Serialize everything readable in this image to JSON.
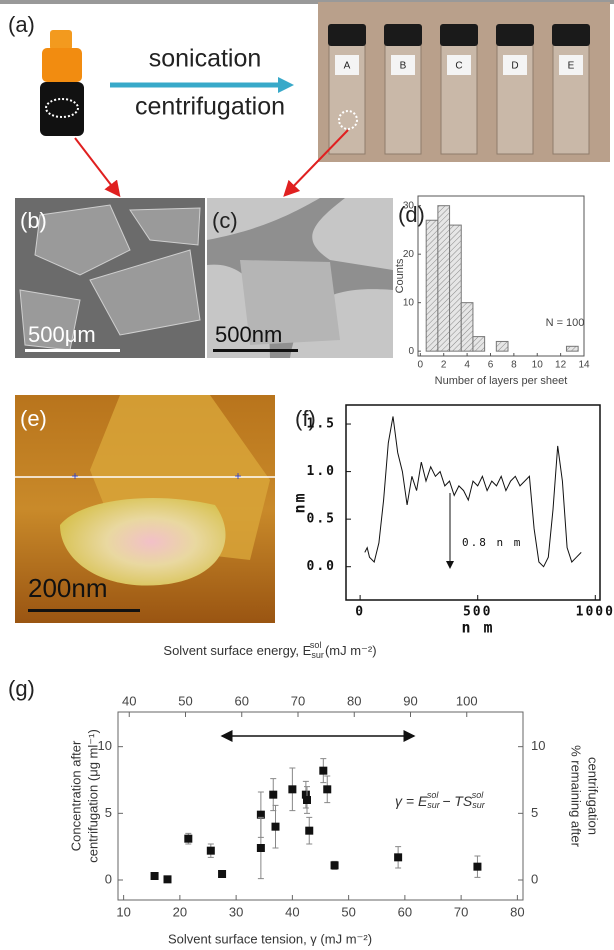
{
  "panels": {
    "a": {
      "label": "(a)",
      "arrow_top": "sonication",
      "arrow_bottom": "centrifugation",
      "vials": [
        "A",
        "B",
        "C",
        "D",
        "E"
      ]
    },
    "b": {
      "label": "(b)",
      "scale": "500μm"
    },
    "c": {
      "label": "(c)",
      "scale": "500nm"
    },
    "e": {
      "label": "(e)",
      "scale": "200nm"
    }
  },
  "chart_data": [
    {
      "type": "histogram",
      "label": "(d)",
      "xlabel": "Number of layers per sheet",
      "ylabel": "Counts",
      "bins": [
        0.5,
        1.5,
        2.5,
        3.5,
        4.5,
        5.5,
        6.5,
        7.5,
        8.5,
        9.5,
        10.5,
        11.5,
        12.5,
        13.5
      ],
      "values": [
        27,
        30,
        26,
        10,
        3,
        0,
        2,
        0,
        0,
        0,
        0,
        0,
        1
      ],
      "color": "#d9d9d9",
      "annotation": "N = 100",
      "xlim": [
        -0.2,
        14
      ],
      "ylim": [
        -1,
        32
      ],
      "xticks": [
        0,
        2,
        4,
        6,
        8,
        10,
        12,
        14
      ],
      "yticks": [
        0,
        10,
        20,
        30
      ]
    },
    {
      "type": "line",
      "label": "(f)",
      "xlabel": "n m",
      "ylabel": "nm",
      "annotation": "0.8 n m",
      "color": "#111111",
      "x": [
        20,
        30,
        40,
        60,
        80,
        100,
        120,
        140,
        160,
        180,
        200,
        220,
        240,
        260,
        280,
        300,
        320,
        340,
        360,
        380,
        400,
        420,
        440,
        460,
        480,
        500,
        520,
        540,
        560,
        580,
        600,
        620,
        640,
        660,
        680,
        700,
        720,
        740,
        760,
        780,
        800,
        820,
        840,
        860,
        880,
        900,
        920,
        940
      ],
      "values": [
        0.15,
        0.2,
        0.1,
        0.05,
        0.25,
        0.7,
        1.3,
        1.58,
        1.2,
        1.0,
        0.65,
        0.95,
        0.8,
        1.1,
        0.9,
        1.05,
        0.95,
        1.0,
        0.85,
        0.9,
        0.75,
        0.85,
        0.8,
        0.7,
        0.9,
        0.85,
        0.95,
        0.8,
        0.9,
        0.85,
        0.95,
        0.8,
        0.9,
        0.95,
        0.85,
        0.9,
        0.95,
        0.4,
        0.05,
        0.0,
        0.1,
        0.6,
        1.27,
        0.9,
        0.2,
        0.05,
        0.1,
        0.15
      ],
      "xlim": [
        -60,
        1020
      ],
      "ylim": [
        -0.35,
        1.7
      ],
      "xticks": [
        0,
        500,
        1000
      ],
      "yticks": [
        {
          "value": 0,
          "label": "0.0"
        },
        {
          "value": 0.5,
          "label": "0.5"
        },
        {
          "value": 1,
          "label": "1.0"
        },
        {
          "value": 1.5,
          "label": "1.5"
        }
      ]
    },
    {
      "type": "scatter",
      "label": "(g)",
      "color": "#111111",
      "xlabel": "Solvent surface tension, γ (mJ m⁻²)",
      "x2label": {
        "main": "Solvent surface energy, E",
        "sub": "sur",
        "sup": "sol",
        "unit": " (mJ m⁻²)"
      },
      "ylabel": [
        "Concentration after",
        "centrifugation (μg ml⁻¹)"
      ],
      "y2label": [
        "% remaining after",
        "centrifugation"
      ],
      "annotation": {
        "a": "γ = E",
        "a_sub": "sur",
        "a_sup": "sol",
        "b": " − TS",
        "b_sub": "sur",
        "b_sup": "sol"
      },
      "x": [
        15.5,
        17.8,
        21.5,
        25.5,
        27.5,
        34.4,
        34.4,
        36.6,
        37.0,
        40.0,
        42.4,
        42.6,
        43.0,
        45.5,
        46.2,
        47.5,
        58.8,
        72.9
      ],
      "values": [
        0.3,
        0.05,
        3.1,
        2.2,
        0.45,
        4.9,
        2.4,
        6.4,
        4.0,
        6.8,
        6.4,
        6.0,
        3.7,
        8.2,
        6.8,
        1.1,
        1.7,
        1.0
      ],
      "errors": [
        0,
        0,
        0.4,
        0.5,
        0,
        1.7,
        2.3,
        1.2,
        1.6,
        1.6,
        1.0,
        1.0,
        1.0,
        0.9,
        1.0,
        0.3,
        0.8,
        0.8
      ],
      "xlim": [
        9,
        81
      ],
      "x2lim": [
        38,
        110
      ],
      "ylim": [
        -1.5,
        12.6
      ],
      "y2lim": [
        -1.5,
        12.6
      ],
      "xticks": [
        10,
        20,
        30,
        40,
        50,
        60,
        70,
        80
      ],
      "x2ticks": [
        40,
        50,
        60,
        70,
        80,
        90,
        100
      ],
      "yticks": [
        0,
        5,
        10
      ],
      "y2ticks": [
        0,
        5,
        10
      ]
    }
  ]
}
